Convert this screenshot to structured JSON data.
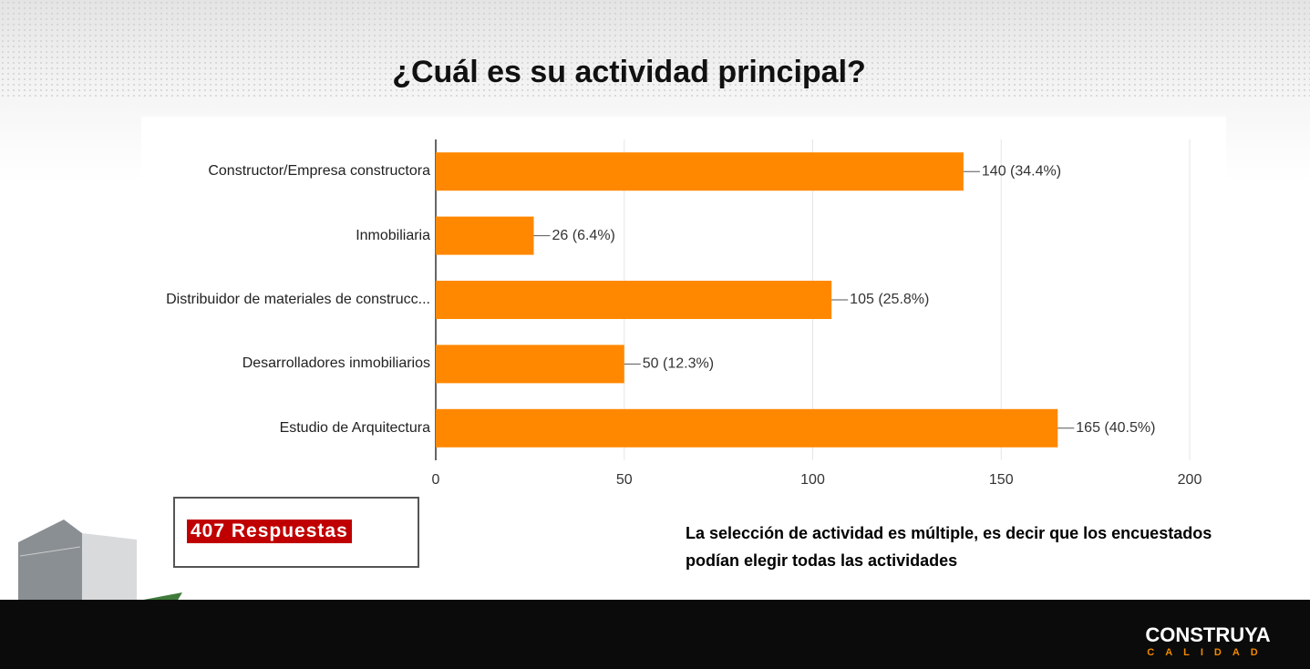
{
  "chart_data": {
    "type": "bar",
    "orientation": "horizontal",
    "title": "¿Cuál es su actividad principal?",
    "categories": [
      "Constructor/Empresa constructora",
      "Inmobiliaria",
      "Distribuidor de materiales de construcc...",
      "Desarrolladores inmobiliarios",
      "Estudio de Arquitectura"
    ],
    "values": [
      140,
      26,
      105,
      50,
      165
    ],
    "value_labels": [
      "140 (34.4%)",
      "26 (6.4%)",
      "105 (25.8%)",
      "50 (12.3%)",
      "165 (40.5%)"
    ],
    "color": "#ff8800",
    "xlim": [
      0,
      200
    ],
    "xticks": [
      0,
      50,
      100,
      150,
      200
    ],
    "grid": true
  },
  "responses": "407 Respuestas",
  "note": "La selección de actividad es múltiple, es decir que los encuestados podían elegir todas las actividades",
  "logo": {
    "name": "CONSTRUYA",
    "tagline": "CALIDAD"
  }
}
